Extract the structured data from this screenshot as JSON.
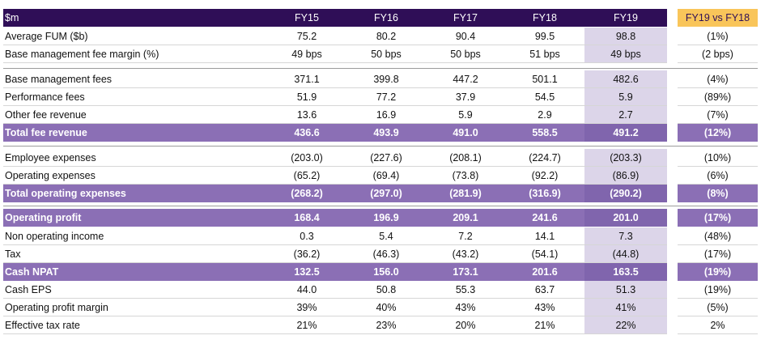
{
  "header": {
    "label": "$m",
    "years": [
      "FY15",
      "FY16",
      "FY17",
      "FY18",
      "FY19"
    ],
    "variance": "FY19 vs FY18"
  },
  "rows": [
    {
      "label": "Average FUM ($b)",
      "values": [
        "75.2",
        "80.2",
        "90.4",
        "99.5",
        "98.8"
      ],
      "variance": "(1%)"
    },
    {
      "label": "Base management fee margin (%)",
      "values": [
        "49 bps",
        "50 bps",
        "50 bps",
        "51 bps",
        "49 bps"
      ],
      "variance": "(2 bps)"
    },
    {
      "label": "Base management fees",
      "values": [
        "371.1",
        "399.8",
        "447.2",
        "501.1",
        "482.6"
      ],
      "variance": "(4%)"
    },
    {
      "label": "Performance fees",
      "values": [
        "51.9",
        "77.2",
        "37.9",
        "54.5",
        "5.9"
      ],
      "variance": "(89%)"
    },
    {
      "label": "Other fee revenue",
      "values": [
        "13.6",
        "16.9",
        "5.9",
        "2.9",
        "2.7"
      ],
      "variance": "(7%)"
    },
    {
      "label": "Total fee revenue",
      "values": [
        "436.6",
        "493.9",
        "491.0",
        "558.5",
        "491.2"
      ],
      "variance": "(12%)"
    },
    {
      "label": "Employee expenses",
      "values": [
        "(203.0)",
        "(227.6)",
        "(208.1)",
        "(224.7)",
        "(203.3)"
      ],
      "variance": "(10%)"
    },
    {
      "label": "Operating expenses",
      "values": [
        "(65.2)",
        "(69.4)",
        "(73.8)",
        "(92.2)",
        "(86.9)"
      ],
      "variance": "(6%)"
    },
    {
      "label": "Total operating expenses",
      "values": [
        "(268.2)",
        "(297.0)",
        "(281.9)",
        "(316.9)",
        "(290.2)"
      ],
      "variance": "(8%)"
    },
    {
      "label": "Operating profit",
      "values": [
        "168.4",
        "196.9",
        "209.1",
        "241.6",
        "201.0"
      ],
      "variance": "(17%)"
    },
    {
      "label": "Non operating income",
      "values": [
        "0.3",
        "5.4",
        "7.2",
        "14.1",
        "7.3"
      ],
      "variance": "(48%)"
    },
    {
      "label": "Tax",
      "values": [
        "(36.2)",
        "(46.3)",
        "(43.2)",
        "(54.1)",
        "(44.8)"
      ],
      "variance": "(17%)"
    },
    {
      "label": "Cash NPAT",
      "values": [
        "132.5",
        "156.0",
        "173.1",
        "201.6",
        "163.5"
      ],
      "variance": "(19%)"
    },
    {
      "label": "Cash EPS",
      "values": [
        "44.0",
        "50.8",
        "55.3",
        "63.7",
        "51.3"
      ],
      "variance": "(19%)"
    },
    {
      "label": "Operating profit margin",
      "values": [
        "39%",
        "40%",
        "43%",
        "43%",
        "41%"
      ],
      "variance": "(5%)"
    },
    {
      "label": "Effective tax rate",
      "values": [
        "21%",
        "23%",
        "20%",
        "21%",
        "22%"
      ],
      "variance": "2%"
    }
  ],
  "colors": {
    "header_bg": "#2f0e57",
    "variance_header_bg": "#f9c55a",
    "total_row_bg": "#8b6fb5",
    "fy19_shade": "#dcd5e9"
  }
}
